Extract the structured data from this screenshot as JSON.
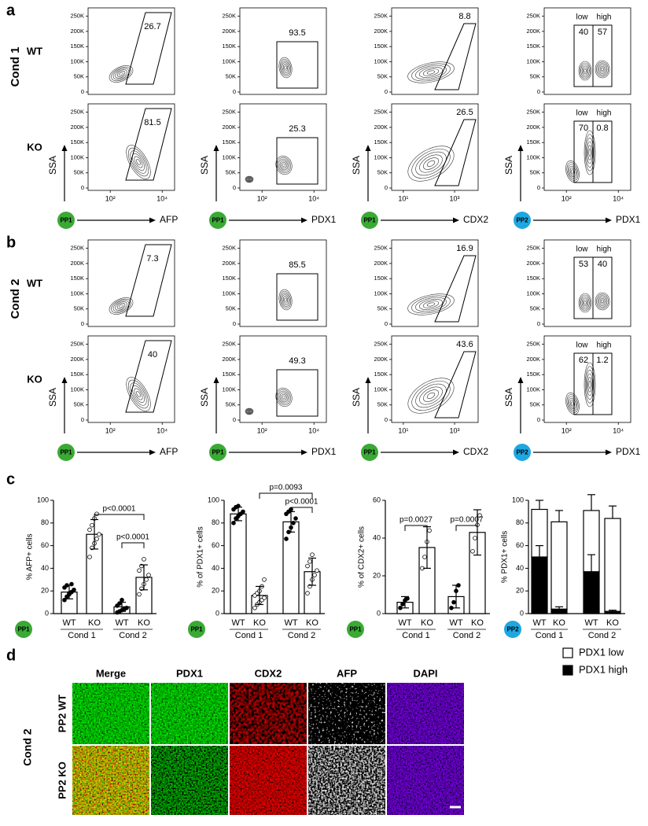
{
  "flow": {
    "y_axis_label": "SSA",
    "xscale": "log",
    "ylim": [
      0,
      262000
    ],
    "yticks": [
      0,
      {
        "value": 50000,
        "label": "50K"
      },
      {
        "value": 100000,
        "label": "100K"
      },
      {
        "value": 150000,
        "label": "150K"
      },
      {
        "value": 200000,
        "label": "200K"
      },
      {
        "value": 250000,
        "label": "250K"
      }
    ],
    "sections": [
      {
        "letter": "a",
        "condition": "Cond 1",
        "columns": [
          {
            "population": "PP1",
            "badge_color": "#3aa935",
            "marker": "AFP",
            "xlim": [
              14,
              30000
            ],
            "xticks": [
              {
                "value": 100,
                "label": "10²"
              },
              {
                "value": 10000,
                "label": "10⁴"
              }
            ]
          },
          {
            "population": "PP1",
            "badge_color": "#3aa935",
            "marker": "PDX1",
            "xlim": [
              14,
              30000
            ],
            "xticks": [
              {
                "value": 100,
                "label": "10²"
              },
              {
                "value": 10000,
                "label": "10⁴"
              }
            ]
          },
          {
            "population": "PP1",
            "badge_color": "#3aa935",
            "marker": "CDX2",
            "xlim": [
              3.5,
              8300
            ],
            "xticks": [
              {
                "value": 10,
                "label": "10¹"
              },
              {
                "value": 1000,
                "label": "10³"
              }
            ]
          },
          {
            "population": "PP2",
            "badge_color": "#1ea7e1",
            "marker": "PDX1",
            "xlim": [
              14,
              30000
            ],
            "xticks": [
              {
                "value": 100,
                "label": "10²"
              },
              {
                "value": 10000,
                "label": "10⁴"
              }
            ]
          }
        ],
        "rows": [
          {
            "genotype": "WT",
            "plots": [
              {
                "gates": [
                  {
                    "value": 26.7
                  }
                ]
              },
              {
                "gates": [
                  {
                    "value": 93.5
                  }
                ]
              },
              {
                "gates": [
                  {
                    "value": 8.8
                  }
                ]
              },
              {
                "gates": [
                  {
                    "label": "low",
                    "value": 40
                  },
                  {
                    "label": "high",
                    "value": 57
                  }
                ]
              }
            ]
          },
          {
            "genotype": "KO",
            "plots": [
              {
                "gates": [
                  {
                    "value": 81.5
                  }
                ]
              },
              {
                "gates": [
                  {
                    "value": 25.3
                  }
                ]
              },
              {
                "gates": [
                  {
                    "value": 26.5
                  }
                ]
              },
              {
                "gates": [
                  {
                    "label": "low",
                    "value": 70
                  },
                  {
                    "label": "high",
                    "value": 0.8
                  }
                ]
              }
            ]
          }
        ]
      },
      {
        "letter": "b",
        "condition": "Cond 2",
        "columns": [
          {
            "population": "PP1",
            "badge_color": "#3aa935",
            "marker": "AFP",
            "xlim": [
              14,
              30000
            ],
            "xticks": [
              {
                "value": 100,
                "label": "10²"
              },
              {
                "value": 10000,
                "label": "10⁴"
              }
            ]
          },
          {
            "population": "PP1",
            "badge_color": "#3aa935",
            "marker": "PDX1",
            "xlim": [
              14,
              30000
            ],
            "xticks": [
              {
                "value": 100,
                "label": "10²"
              },
              {
                "value": 10000,
                "label": "10⁴"
              }
            ]
          },
          {
            "population": "PP1",
            "badge_color": "#3aa935",
            "marker": "CDX2",
            "xlim": [
              3.5,
              8300
            ],
            "xticks": [
              {
                "value": 10,
                "label": "10¹"
              },
              {
                "value": 1000,
                "label": "10³"
              }
            ]
          },
          {
            "population": "PP2",
            "badge_color": "#1ea7e1",
            "marker": "PDX1",
            "xlim": [
              14,
              30000
            ],
            "xticks": [
              {
                "value": 100,
                "label": "10²"
              },
              {
                "value": 10000,
                "label": "10⁴"
              }
            ]
          }
        ],
        "rows": [
          {
            "genotype": "WT",
            "plots": [
              {
                "gates": [
                  {
                    "value": 7.3
                  }
                ]
              },
              {
                "gates": [
                  {
                    "value": 85.5
                  }
                ]
              },
              {
                "gates": [
                  {
                    "value": 16.9
                  }
                ]
              },
              {
                "gates": [
                  {
                    "label": "low",
                    "value": 53
                  },
                  {
                    "label": "high",
                    "value": 40
                  }
                ]
              }
            ]
          },
          {
            "genotype": "KO",
            "plots": [
              {
                "gates": [
                  {
                    "value": 40
                  }
                ]
              },
              {
                "gates": [
                  {
                    "value": 49.3
                  }
                ]
              },
              {
                "gates": [
                  {
                    "value": 43.6
                  }
                ]
              },
              {
                "gates": [
                  {
                    "label": "low",
                    "value": 62
                  },
                  {
                    "label": "high",
                    "value": 1.2
                  }
                ]
              }
            ]
          }
        ]
      }
    ]
  },
  "bars": {
    "letter": "c",
    "charts": [
      {
        "type": "bar",
        "population": "PP1",
        "badge_color": "#3aa935",
        "y_label": "% AFP+ cells",
        "ylim": [
          0,
          100
        ],
        "yticks": [
          0,
          20,
          40,
          60,
          80,
          100
        ],
        "categories": [
          "WT",
          "KO",
          "WT",
          "KO"
        ],
        "groups": [
          "Cond 1",
          "Cond 2"
        ],
        "values": [
          19,
          70,
          6,
          32
        ],
        "errors": [
          6,
          13,
          4,
          11
        ],
        "points": [
          [
            12,
            15,
            17,
            19,
            21,
            23,
            25,
            18,
            26
          ],
          [
            50,
            58,
            62,
            66,
            70,
            74,
            78,
            84,
            88
          ],
          [
            1,
            2,
            3,
            4,
            5,
            7,
            9,
            12
          ],
          [
            17,
            22,
            26,
            30,
            34,
            38,
            42,
            48
          ]
        ],
        "comparisons": [
          "p<0.0001",
          "p<0.0001"
        ]
      },
      {
        "type": "bar",
        "population": "PP1",
        "badge_color": "#3aa935",
        "y_label": "% of PDX1+ cells",
        "ylim": [
          0,
          100
        ],
        "yticks": [
          0,
          20,
          40,
          60,
          80,
          100
        ],
        "categories": [
          "WT",
          "KO",
          "WT",
          "KO"
        ],
        "groups": [
          "Cond 1",
          "Cond 2"
        ],
        "values": [
          88,
          16,
          81,
          37
        ],
        "errors": [
          6,
          8,
          9,
          12
        ],
        "points": [
          [
            80,
            84,
            86,
            88,
            90,
            92,
            94,
            95
          ],
          [
            5,
            8,
            10,
            12,
            14,
            16,
            18,
            20,
            24,
            30
          ],
          [
            66,
            72,
            76,
            80,
            84,
            88,
            90,
            92
          ],
          [
            18,
            24,
            30,
            34,
            38,
            42,
            46,
            52
          ]
        ],
        "comparisons": [
          "p=0.0093",
          "p<0.0001"
        ]
      },
      {
        "type": "bar",
        "population": "PP1",
        "badge_color": "#3aa935",
        "y_label": "% of CDX2+ cells",
        "ylim": [
          0,
          60
        ],
        "yticks": [
          0,
          20,
          40,
          60
        ],
        "categories": [
          "WT",
          "KO",
          "WT",
          "KO"
        ],
        "groups": [
          "Cond 1",
          "Cond 2"
        ],
        "values": [
          6,
          35,
          9,
          43
        ],
        "errors": [
          3,
          11,
          6,
          12
        ],
        "points": [
          [
            3,
            5,
            7,
            8
          ],
          [
            24,
            30,
            38,
            44
          ],
          [
            3,
            6,
            12,
            15
          ],
          [
            33,
            40,
            47,
            52
          ]
        ],
        "comparisons": [
          "p=0.0027",
          "p=0.0007"
        ]
      },
      {
        "type": "stacked_bar",
        "population": "PP2",
        "badge_color": "#1ea7e1",
        "y_label": "% PDX1+ cells",
        "ylim": [
          0,
          100
        ],
        "yticks": [
          0,
          20,
          40,
          60,
          80,
          100
        ],
        "categories": [
          "WT",
          "KO",
          "WT",
          "KO"
        ],
        "groups": [
          "Cond 1",
          "Cond 2"
        ],
        "series": [
          {
            "name": "PDX1 high",
            "color": "#000000",
            "values": [
              50,
              4,
              37,
              2
            ],
            "errors": [
              10,
              2,
              15,
              1
            ]
          },
          {
            "name": "PDX1 low",
            "color": "#ffffff",
            "values": [
              42,
              77,
              54,
              82
            ],
            "errors": [
              8,
              10,
              14,
              11
            ]
          }
        ]
      }
    ]
  },
  "images": {
    "letter": "d",
    "condition": "Cond 2",
    "columns": [
      "Merge",
      "PDX1",
      "CDX2",
      "AFP",
      "DAPI"
    ],
    "rows": [
      "PP2 WT",
      "PP2 KO"
    ]
  }
}
